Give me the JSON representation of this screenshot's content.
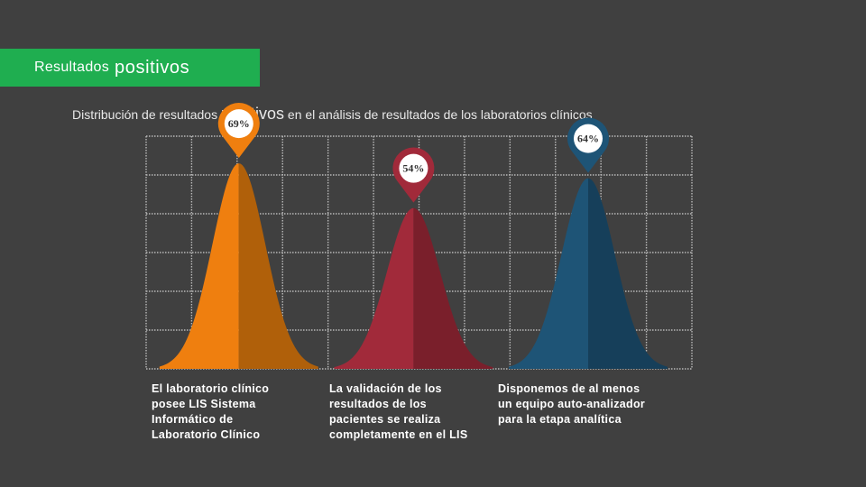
{
  "header": {
    "title_part1": "Resultados",
    "title_part2": "positivos"
  },
  "subtitle": {
    "part1": "Distribución de resultados",
    "part2": "positivos",
    "part3": "en el análisis de resultados de los laboratorios clínicos"
  },
  "colors": {
    "background": "#404040",
    "title_band": "#1fae50",
    "orange": "#ef7f0f",
    "red": "#a12a3a",
    "blue": "#1e5476"
  },
  "chart_data": {
    "type": "area",
    "ylim": [
      0,
      100
    ],
    "grid": true,
    "series": [
      {
        "label": "69%",
        "value": 69,
        "color": "#ef7f0f",
        "shade": "#b0600a"
      },
      {
        "label": "54%",
        "value": 54,
        "color": "#a12a3a",
        "shade": "#7a1f2b"
      },
      {
        "label": "64%",
        "value": 64,
        "color": "#1e5476",
        "shade": "#163f5a"
      }
    ]
  },
  "descriptions": [
    "El laboratorio clínico posee LIS Sistema Informático de Laboratorio Clínico",
    "La validación de los resultados de los pacientes se realiza completamente en el LIS",
    "Disponemos de al menos un equipo auto-analizador para la etapa analítica"
  ]
}
